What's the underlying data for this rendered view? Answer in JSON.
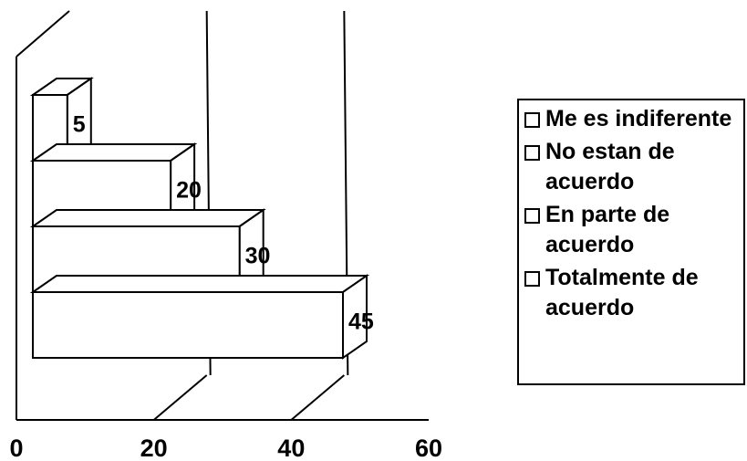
{
  "chart_data": {
    "type": "bar",
    "orientation": "horizontal",
    "three_d": true,
    "stacked_depth": true,
    "series": [
      {
        "name": "Me es indiferente",
        "value": 5
      },
      {
        "name": "No estan de acuerdo",
        "value": 20
      },
      {
        "name": "En parte de acuerdo",
        "value": 30
      },
      {
        "name": "Totalmente de acuerdo",
        "value": 45
      }
    ],
    "data_labels": [
      "5",
      "20",
      "30",
      "45"
    ],
    "xticks": [
      "0",
      "20",
      "40",
      "60"
    ],
    "xlim": [
      0,
      60
    ],
    "grid": true,
    "legend_position": "right",
    "title": "",
    "xlabel": "",
    "ylabel": ""
  }
}
